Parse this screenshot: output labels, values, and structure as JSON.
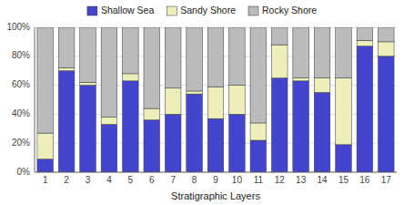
{
  "chart_data": {
    "type": "bar",
    "stacked": true,
    "categories": [
      "1",
      "2",
      "3",
      "4",
      "5",
      "6",
      "7",
      "8",
      "9",
      "10",
      "11",
      "12",
      "13",
      "14",
      "15",
      "16",
      "17"
    ],
    "series": [
      {
        "name": "Shallow Sea",
        "color": "#4444cc",
        "values": [
          9,
          70,
          60,
          33,
          63,
          36,
          40,
          54,
          37,
          40,
          22,
          65,
          63,
          55,
          19,
          87,
          80
        ]
      },
      {
        "name": "Sandy Shore",
        "color": "#eeeebb",
        "values": [
          18,
          2,
          2,
          5,
          5,
          8,
          18,
          2,
          22,
          20,
          12,
          23,
          2,
          10,
          46,
          4,
          10
        ]
      },
      {
        "name": "Rocky Shore",
        "color": "#bbbbbb",
        "values": [
          73,
          28,
          38,
          62,
          32,
          56,
          42,
          44,
          41,
          40,
          66,
          12,
          35,
          35,
          35,
          9,
          10
        ]
      }
    ],
    "x_label": "Stratigraphic Layers",
    "ylim": [
      0,
      100
    ],
    "yticks": [
      {
        "value": 0,
        "label": "0%"
      },
      {
        "value": 20,
        "label": "20%"
      },
      {
        "value": 40,
        "label": "40%"
      },
      {
        "value": 60,
        "label": "60%"
      },
      {
        "value": 80,
        "label": "80%"
      },
      {
        "value": 100,
        "label": "100%"
      }
    ],
    "grid": true,
    "legend": "top"
  }
}
